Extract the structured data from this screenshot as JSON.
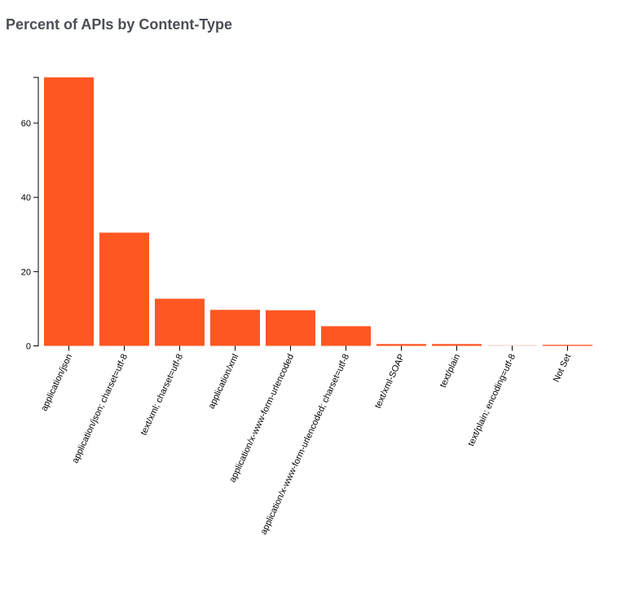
{
  "title": "Percent of APIs by Content-Type",
  "chart_data": {
    "type": "bar",
    "title": "Percent of APIs by Content-Type",
    "xlabel": "",
    "ylabel": "",
    "categories": [
      "application/json",
      "application/json; charset=utf-8",
      "text/xml; charset=utf-8",
      "application/xml",
      "application/x-www-form-urlencoded",
      "application/x-www-form-urlencoded; charset=utf-8",
      "text/xml-SOAP",
      "text/plain",
      "text/plain; encoding=utf-8",
      "Not Set"
    ],
    "values": [
      72.3,
      30.5,
      12.7,
      9.7,
      9.6,
      5.3,
      0.5,
      0.5,
      0.1,
      0.3
    ],
    "ylim": [
      0,
      72.3
    ],
    "yticks": [
      0,
      20,
      40,
      60
    ],
    "grid": false,
    "legend": null,
    "bar_color": "#ff5722"
  }
}
